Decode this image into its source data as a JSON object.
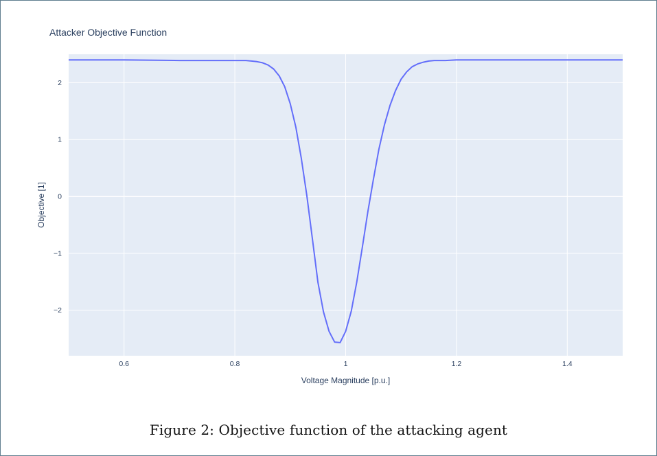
{
  "figure": {
    "caption": "Figure 2: Objective function of the attacking agent"
  },
  "colors": {
    "plot_background": "#e5ecf6",
    "grid": "#ffffff",
    "line": "#636efa",
    "text": "#2a3f5f"
  },
  "chart_data": {
    "type": "line",
    "title": "Attacker Objective Function",
    "xlabel": "Voltage Magnitude [p.u.]",
    "ylabel": "Objective [1]",
    "xlim": [
      0.5,
      1.5
    ],
    "ylim": [
      -2.8,
      2.5
    ],
    "grid": true,
    "legend": "none",
    "x_ticks": [
      {
        "value": 0.6,
        "label": "0.6"
      },
      {
        "value": 0.8,
        "label": "0.8"
      },
      {
        "value": 1.0,
        "label": "1"
      },
      {
        "value": 1.2,
        "label": "1.2"
      },
      {
        "value": 1.4,
        "label": "1.4"
      }
    ],
    "y_ticks": [
      {
        "value": -2,
        "label": "−2"
      },
      {
        "value": -1,
        "label": "−1"
      },
      {
        "value": 0,
        "label": "0"
      },
      {
        "value": 1,
        "label": "1"
      },
      {
        "value": 2,
        "label": "2"
      }
    ],
    "series": [
      {
        "x": [
          0.5,
          0.6,
          0.7,
          0.8,
          0.82,
          0.83,
          0.84,
          0.85,
          0.86,
          0.87,
          0.88,
          0.89,
          0.9,
          0.91,
          0.92,
          0.93,
          0.94,
          0.95,
          0.96,
          0.97,
          0.98,
          0.99,
          1.0,
          1.01,
          1.02,
          1.03,
          1.04,
          1.05,
          1.06,
          1.07,
          1.08,
          1.09,
          1.1,
          1.11,
          1.12,
          1.13,
          1.14,
          1.15,
          1.16,
          1.17,
          1.18,
          1.2,
          1.3,
          1.4,
          1.5
        ],
        "y": [
          2.4,
          2.4,
          2.39,
          2.39,
          2.39,
          2.38,
          2.37,
          2.35,
          2.31,
          2.24,
          2.12,
          1.93,
          1.63,
          1.22,
          0.67,
          0.01,
          -0.75,
          -1.51,
          -2.03,
          -2.37,
          -2.56,
          -2.57,
          -2.37,
          -2.02,
          -1.51,
          -0.9,
          -0.27,
          0.3,
          0.83,
          1.26,
          1.6,
          1.86,
          2.06,
          2.19,
          2.28,
          2.33,
          2.36,
          2.38,
          2.39,
          2.39,
          2.39,
          2.4,
          2.4,
          2.4,
          2.4
        ]
      }
    ]
  }
}
